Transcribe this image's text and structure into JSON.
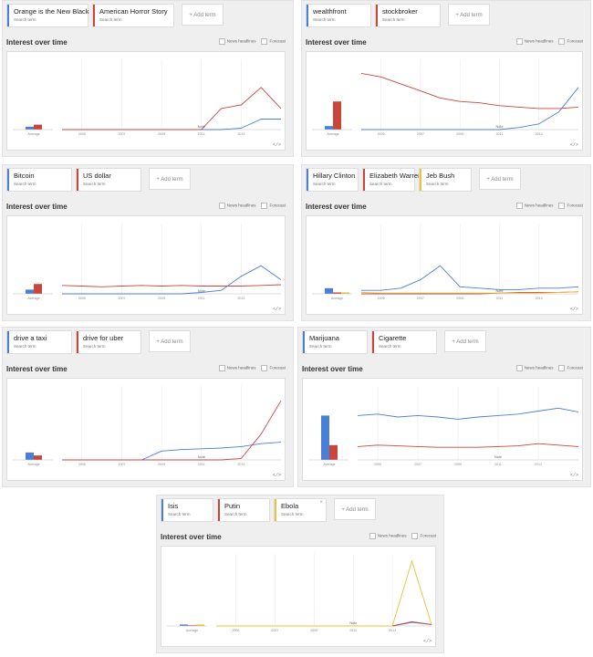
{
  "ui": {
    "interest_title": "Interest over time",
    "news_headlines": "News headlines",
    "forecast": "Forecast",
    "add_term": "+ Add term",
    "search_term": "Search term",
    "average": "Average",
    "note": "Note",
    "embed_icon": "</>",
    "years": [
      "2005",
      "2007",
      "2009",
      "2011",
      "2013"
    ]
  },
  "colors": {
    "blue": "#4a7fd8",
    "red": "#c9463d",
    "yellow": "#e9c13a",
    "grid": "#e6e6e6",
    "axis": "#bbbbbb"
  },
  "panels": [
    {
      "terms": [
        {
          "label": "Orange is the New Black",
          "color": "#4a7fd8"
        },
        {
          "label": "American Horror Story",
          "color": "#c9463d"
        }
      ],
      "averages": [
        4,
        7
      ],
      "chart_data": {
        "type": "line",
        "x": [
          "2004",
          "2005",
          "2006",
          "2007",
          "2008",
          "2009",
          "2010",
          "2011",
          "2012",
          "2013",
          "2014",
          "2015"
        ],
        "ylim": [
          0,
          100
        ],
        "series": [
          {
            "name": "Orange is the New Black",
            "color": "#4a7fd8",
            "values": [
              0,
              0,
              0,
              0,
              0,
              0,
              0,
              0,
              0,
              2,
              15,
              15
            ]
          },
          {
            "name": "American Horror Story",
            "color": "#c9463d",
            "values": [
              0,
              0,
              0,
              0,
              0,
              0,
              0,
              0,
              30,
              35,
              60,
              30
            ]
          }
        ]
      }
    },
    {
      "terms": [
        {
          "label": "wealthfront",
          "color": "#4a7fd8"
        },
        {
          "label": "stockbroker",
          "color": "#c9463d"
        }
      ],
      "averages": [
        5,
        40
      ],
      "chart_data": {
        "type": "line",
        "x": [
          "2004",
          "2005",
          "2006",
          "2007",
          "2008",
          "2009",
          "2010",
          "2011",
          "2012",
          "2013",
          "2014",
          "2015"
        ],
        "ylim": [
          0,
          100
        ],
        "series": [
          {
            "name": "wealthfront",
            "color": "#4a7fd8",
            "values": [
              0,
              0,
              0,
              0,
              0,
              0,
              0,
              0,
              3,
              8,
              25,
              60
            ]
          },
          {
            "name": "stockbroker",
            "color": "#c9463d",
            "values": [
              80,
              75,
              65,
              55,
              45,
              40,
              38,
              34,
              32,
              30,
              30,
              32
            ]
          }
        ]
      }
    },
    {
      "terms": [
        {
          "label": "Bitcoin",
          "color": "#4a7fd8"
        },
        {
          "label": "US dollar",
          "color": "#c9463d"
        }
      ],
      "averages": [
        6,
        14
      ],
      "chart_data": {
        "type": "line",
        "x": [
          "2004",
          "2005",
          "2006",
          "2007",
          "2008",
          "2009",
          "2010",
          "2011",
          "2012",
          "2013",
          "2014",
          "2015"
        ],
        "ylim": [
          0,
          100
        ],
        "series": [
          {
            "name": "Bitcoin",
            "color": "#4a7fd8",
            "values": [
              0,
              0,
              0,
              0,
              0,
              0,
              0,
              2,
              5,
              25,
              40,
              20
            ]
          },
          {
            "name": "US dollar",
            "color": "#c9463d",
            "values": [
              12,
              11,
              10,
              11,
              12,
              11,
              12,
              11,
              11,
              11,
              12,
              13
            ]
          }
        ]
      }
    },
    {
      "terms": [
        {
          "label": "Hillary Clinton",
          "color": "#4a7fd8"
        },
        {
          "label": "Elizabeth Warren",
          "color": "#c9463d"
        },
        {
          "label": "Jeb Bush",
          "color": "#e9c13a"
        }
      ],
      "averages": [
        8,
        2,
        2
      ],
      "chart_data": {
        "type": "line",
        "x": [
          "2004",
          "2005",
          "2006",
          "2007",
          "2008",
          "2009",
          "2010",
          "2011",
          "2012",
          "2013",
          "2014",
          "2015"
        ],
        "ylim": [
          0,
          100
        ],
        "series": [
          {
            "name": "Hillary Clinton",
            "color": "#4a7fd8",
            "values": [
              5,
              5,
              8,
              20,
              40,
              10,
              8,
              6,
              6,
              8,
              8,
              10
            ]
          },
          {
            "name": "Elizabeth Warren",
            "color": "#c9463d",
            "values": [
              0,
              0,
              0,
              0,
              0,
              0,
              0,
              1,
              2,
              2,
              2,
              3
            ]
          },
          {
            "name": "Jeb Bush",
            "color": "#e9c13a",
            "values": [
              2,
              1,
              1,
              1,
              1,
              1,
              1,
              1,
              1,
              1,
              2,
              3
            ]
          }
        ]
      }
    },
    {
      "terms": [
        {
          "label": "drive a taxi",
          "color": "#4a7fd8"
        },
        {
          "label": "drive for uber",
          "color": "#c9463d"
        }
      ],
      "averages": [
        10,
        6
      ],
      "chart_data": {
        "type": "line",
        "x": [
          "2004",
          "2005",
          "2006",
          "2007",
          "2008",
          "2009",
          "2010",
          "2011",
          "2012",
          "2013",
          "2014",
          "2015"
        ],
        "ylim": [
          0,
          100
        ],
        "series": [
          {
            "name": "drive a taxi",
            "color": "#4a7fd8",
            "values": [
              0,
              0,
              0,
              0,
              0,
              12,
              14,
              15,
              16,
              18,
              22,
              24
            ]
          },
          {
            "name": "drive for uber",
            "color": "#c9463d",
            "values": [
              0,
              0,
              0,
              0,
              0,
              0,
              0,
              0,
              0,
              2,
              35,
              80
            ]
          }
        ]
      }
    },
    {
      "terms": [
        {
          "label": "Marijuana",
          "color": "#4a7fd8"
        },
        {
          "label": "Cigarette",
          "color": "#c9463d"
        }
      ],
      "averages": [
        60,
        20
      ],
      "chart_data": {
        "type": "line",
        "x": [
          "2004",
          "2005",
          "2006",
          "2007",
          "2008",
          "2009",
          "2010",
          "2011",
          "2012",
          "2013",
          "2014",
          "2015"
        ],
        "ylim": [
          0,
          100
        ],
        "series": [
          {
            "name": "Marijuana",
            "color": "#4a7fd8",
            "values": [
              60,
              62,
              58,
              60,
              58,
              55,
              58,
              60,
              62,
              66,
              70,
              65
            ]
          },
          {
            "name": "Cigarette",
            "color": "#c9463d",
            "values": [
              18,
              20,
              19,
              18,
              17,
              17,
              17,
              18,
              19,
              22,
              20,
              18
            ]
          }
        ]
      }
    },
    {
      "terms": [
        {
          "label": "Isis",
          "color": "#4a7fd8"
        },
        {
          "label": "Putin",
          "color": "#c9463d"
        },
        {
          "label": "Ebola",
          "color": "#e9c13a"
        }
      ],
      "averages": [
        2,
        1,
        2
      ],
      "chart_data": {
        "type": "line",
        "x": [
          "2004",
          "2005",
          "2006",
          "2007",
          "2008",
          "2009",
          "2010",
          "2011",
          "2012",
          "2013",
          "2014",
          "2015"
        ],
        "ylim": [
          0,
          100
        ],
        "series": [
          {
            "name": "Isis",
            "color": "#4a7fd8",
            "values": [
              0,
              0,
              0,
              0,
              0,
              0,
              0,
              0,
              0,
              0,
              5,
              2
            ]
          },
          {
            "name": "Putin",
            "color": "#c9463d",
            "values": [
              0,
              0,
              0,
              0,
              0,
              0,
              0,
              0,
              0,
              0,
              6,
              2
            ]
          },
          {
            "name": "Ebola",
            "color": "#e9c13a",
            "values": [
              0,
              0,
              0,
              0,
              0,
              0,
              0,
              0,
              0,
              0,
              90,
              2
            ]
          }
        ]
      }
    }
  ]
}
